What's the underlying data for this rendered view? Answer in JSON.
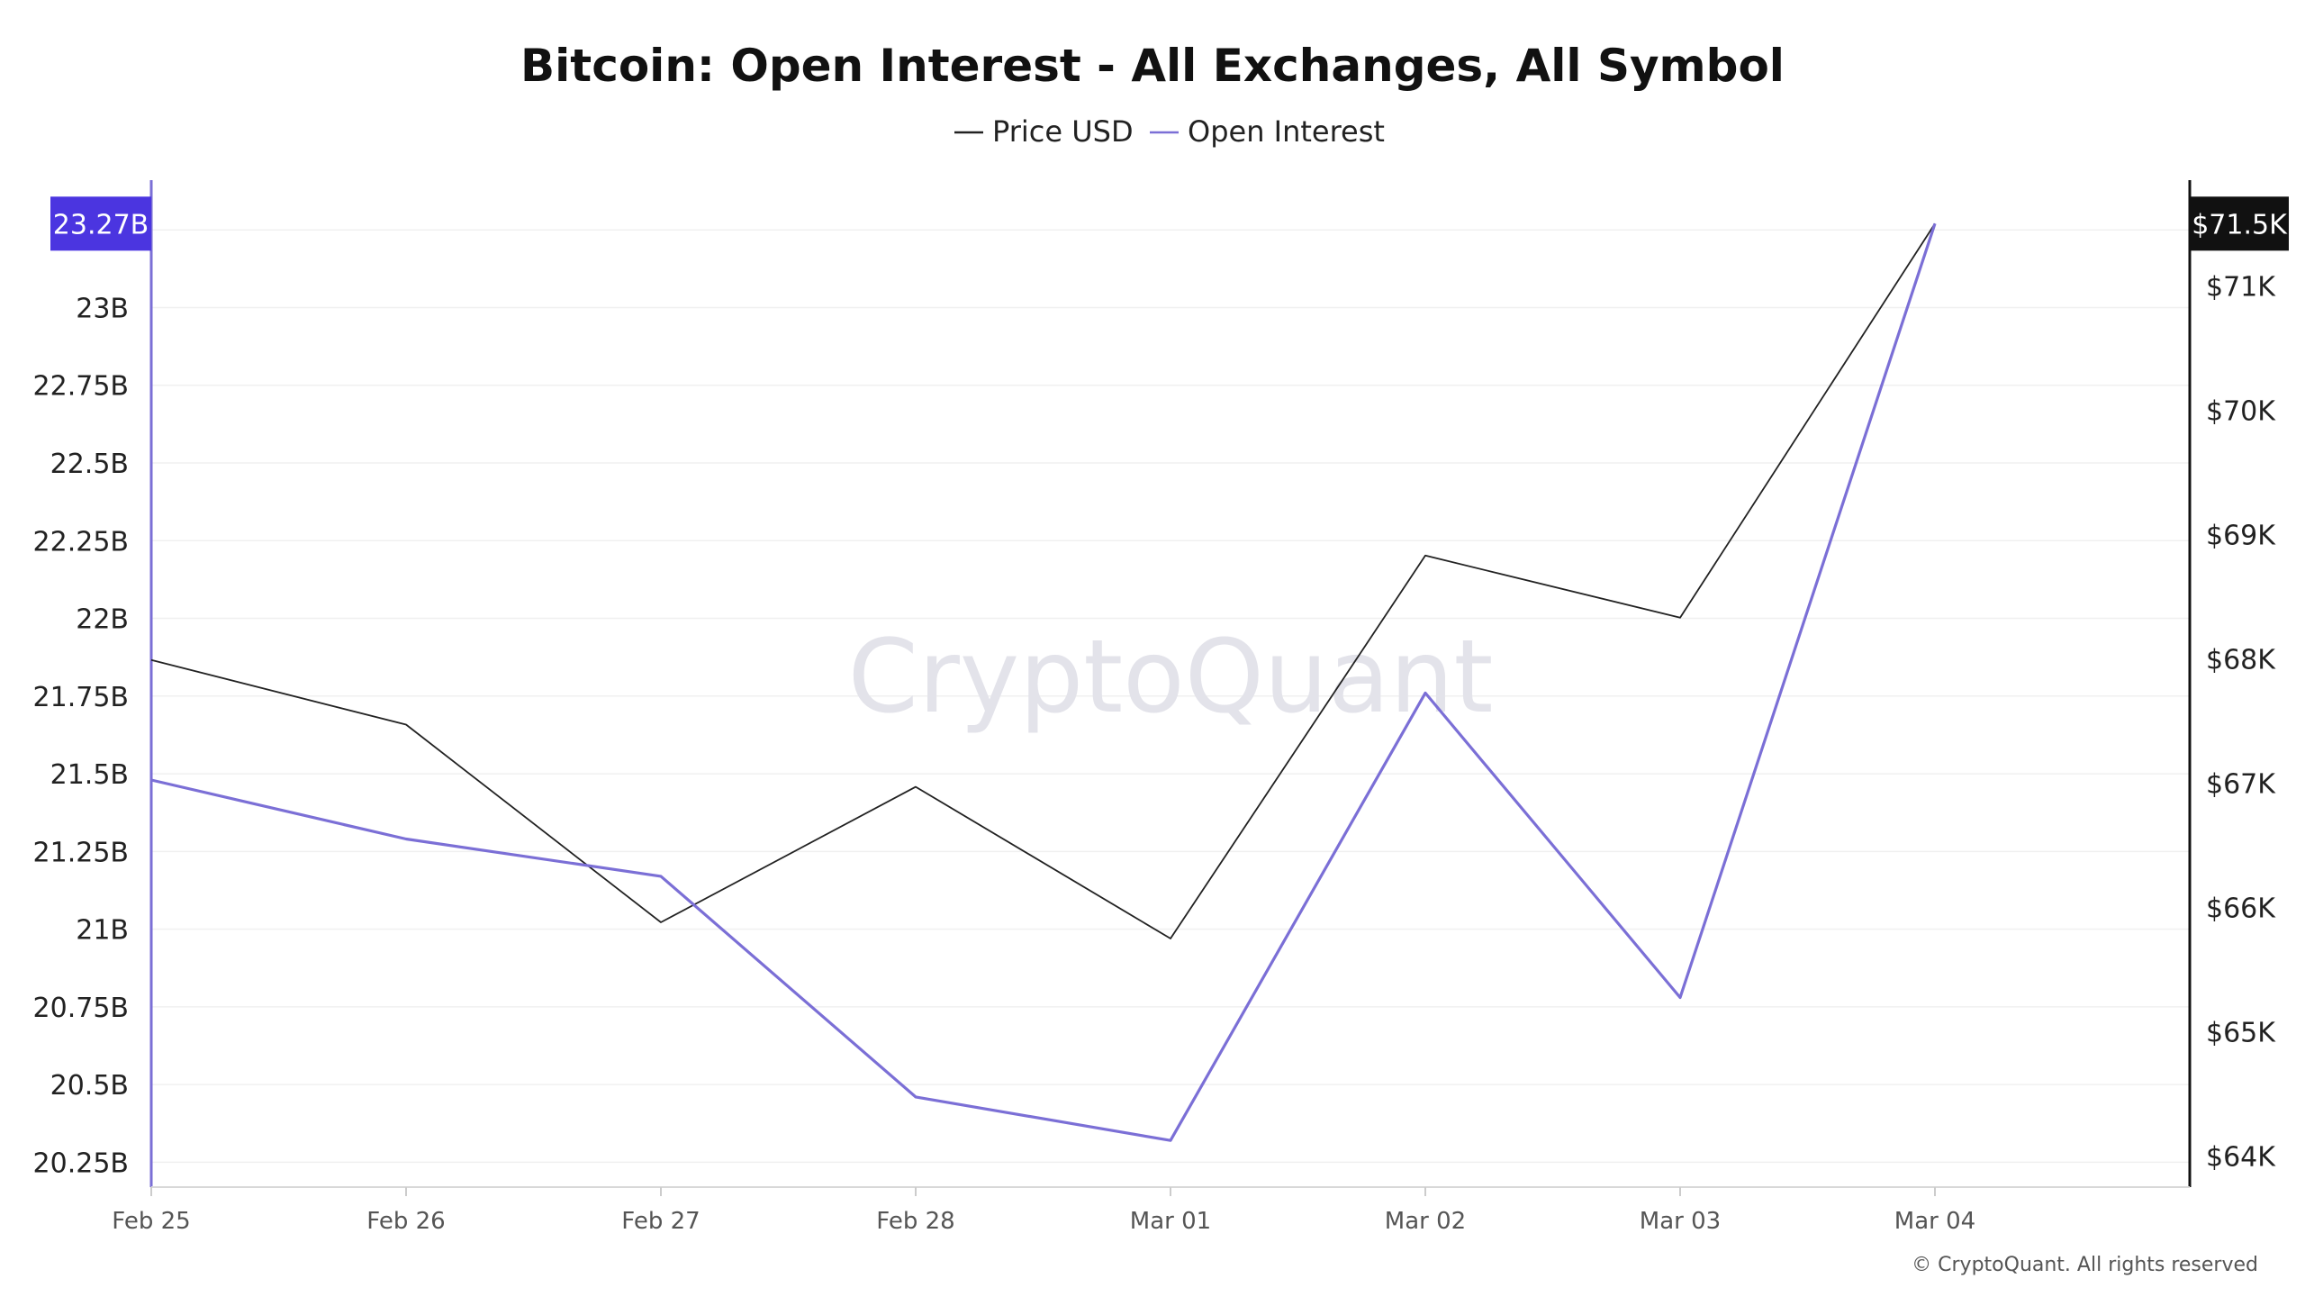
{
  "chart_data": {
    "type": "line",
    "title": "Bitcoin: Open Interest - All Exchanges, All Symbol",
    "categories": [
      "Feb 25",
      "Feb 26",
      "Feb 27",
      "Feb 28",
      "Mar 01",
      "Mar 02",
      "Mar 03",
      "Mar 04"
    ],
    "series": [
      {
        "name": "Price USD",
        "axis": "right",
        "color": "#222222",
        "values": [
          67990,
          67470,
          65880,
          66970,
          65750,
          68830,
          68330,
          71500
        ]
      },
      {
        "name": "Open Interest",
        "axis": "left",
        "color": "#7b6fd6",
        "values": [
          21.48,
          21.29,
          21.17,
          20.46,
          20.32,
          21.76,
          20.78,
          23.27
        ]
      }
    ],
    "y_left": {
      "ticks": [
        20.25,
        20.5,
        20.75,
        21,
        21.25,
        21.5,
        21.75,
        22,
        22.25,
        22.5,
        22.75,
        23
      ],
      "tick_labels": [
        "20.25B",
        "20.5B",
        "20.75B",
        "21B",
        "21.25B",
        "21.5B",
        "21.75B",
        "22B",
        "22.25B",
        "22.5B",
        "22.75B",
        "23B"
      ],
      "range": [
        20.17,
        23.41
      ],
      "current_badge": "23.27B",
      "badge_value": 23.27,
      "badge_color": "#4b35e0"
    },
    "y_right": {
      "ticks": [
        64000,
        65000,
        66000,
        67000,
        68000,
        69000,
        70000,
        71000
      ],
      "tick_labels": [
        "$64K",
        "$65K",
        "$66K",
        "$67K",
        "$68K",
        "$69K",
        "$70K",
        "$71K"
      ],
      "range": [
        63750,
        71850
      ],
      "current_badge": "$71.5K",
      "badge_value": 71500,
      "badge_color": "#111111"
    },
    "grid": "horizontal",
    "legend_position": "top-center"
  },
  "watermark": "CryptoQuant",
  "copyright": "© CryptoQuant. All rights reserved"
}
